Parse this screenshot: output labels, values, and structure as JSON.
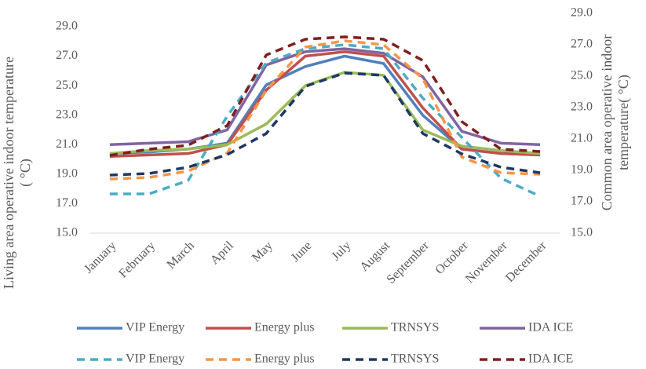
{
  "chart_data": {
    "type": "line",
    "y_label": "Living area operative indoor temperature ( °C)",
    "y2_label": "Common area operative indoor temperature( °C)",
    "categories": [
      "January",
      "February",
      "March",
      "April",
      "May",
      "June",
      "July",
      "August",
      "September",
      "October",
      "November",
      "December"
    ],
    "ylim": [
      15,
      29.9
    ],
    "yticks": [
      {
        "value": 15,
        "label": "15.0"
      },
      {
        "value": 17,
        "label": "17.0"
      },
      {
        "value": 19,
        "label": "19.0"
      },
      {
        "value": 21,
        "label": "21.0"
      },
      {
        "value": 23,
        "label": "23.0"
      },
      {
        "value": 25,
        "label": "25.0"
      },
      {
        "value": 27,
        "label": "27.0"
      },
      {
        "value": 29,
        "label": "29.0"
      }
    ],
    "y2lim": [
      15,
      29
    ],
    "y2ticks": [
      {
        "value": 15,
        "label": "15.0"
      },
      {
        "value": 17,
        "label": "17.0"
      },
      {
        "value": 19,
        "label": "19.0"
      },
      {
        "value": 21,
        "label": "21.0"
      },
      {
        "value": 23,
        "label": "23.0"
      },
      {
        "value": 25,
        "label": "25.0"
      },
      {
        "value": 27,
        "label": "27.0"
      },
      {
        "value": 29,
        "label": "29.0"
      }
    ],
    "series": [
      {
        "name": "VIP Energy",
        "color": "#4f81bd",
        "line_style": "solid",
        "values": [
          20.4,
          20.5,
          20.7,
          21.1,
          25.05,
          26.3,
          27.0,
          26.5,
          23.0,
          20.7,
          20.4,
          20.3
        ]
      },
      {
        "name": "Energy plus",
        "color": "#c0504d",
        "line_style": "solid",
        "values": [
          20.2,
          20.3,
          20.4,
          21.0,
          24.7,
          27.0,
          27.3,
          27.0,
          23.5,
          20.7,
          20.4,
          20.3
        ]
      },
      {
        "name": "TRNSYS",
        "color": "#9bbb59",
        "line_style": "solid",
        "values": [
          20.4,
          20.6,
          20.7,
          21.0,
          22.4,
          25.0,
          25.9,
          25.7,
          22.0,
          20.9,
          20.6,
          20.4
        ]
      },
      {
        "name": "IDA ICE",
        "color": "#8064a2",
        "line_style": "solid",
        "values": [
          21.0,
          21.1,
          21.2,
          22.0,
          26.4,
          27.3,
          27.5,
          27.2,
          25.6,
          21.9,
          21.1,
          21.0
        ]
      },
      {
        "name": "VIP Energy",
        "color": "#4bacc6",
        "line_style": "dashed",
        "axis": "y2",
        "values": [
          17.5,
          17.5,
          18.35,
          22.45,
          25.85,
          26.75,
          27.0,
          26.75,
          23.6,
          21.1,
          18.5,
          17.35
        ]
      },
      {
        "name": "Energy plus",
        "color": "#f79646",
        "line_style": "dashed",
        "axis": "y2",
        "values": [
          18.45,
          18.55,
          18.95,
          20.1,
          24.1,
          26.85,
          27.25,
          27.0,
          24.85,
          19.85,
          18.85,
          18.75
        ]
      },
      {
        "name": "TRNSYS",
        "color": "#1f3864",
        "line_style": "dashed",
        "axis": "y2",
        "values": [
          18.7,
          18.8,
          19.2,
          20.0,
          21.35,
          24.35,
          25.2,
          25.05,
          21.35,
          20.05,
          19.2,
          18.85
        ]
      },
      {
        "name": "IDA ICE",
        "color": "#7f1f1f",
        "line_style": "dashed",
        "axis": "y2",
        "values": [
          19.95,
          20.35,
          20.6,
          21.85,
          26.35,
          27.35,
          27.5,
          27.35,
          26.0,
          22.1,
          20.35,
          20.2
        ]
      }
    ]
  }
}
